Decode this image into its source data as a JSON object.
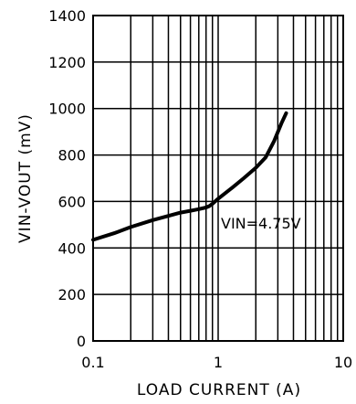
{
  "chart_data": {
    "type": "line",
    "xlabel": "LOAD CURRENT (A)",
    "ylabel": "VIN-VOUT (mV)",
    "x_scale": "log",
    "xlim": [
      0.1,
      10
    ],
    "ylim": [
      0,
      1400
    ],
    "x_ticks": [
      "0.1",
      "1",
      "10"
    ],
    "y_ticks": [
      "0",
      "200",
      "400",
      "600",
      "800",
      "1000",
      "1200",
      "1400"
    ],
    "grid": true,
    "annotation": "VIN=4.75V",
    "series": [
      {
        "x": [
          0.1,
          0.15,
          0.2,
          0.3,
          0.4,
          0.5,
          0.6,
          0.7,
          0.8,
          0.85,
          0.9,
          1.0,
          1.3,
          1.6,
          2.0,
          2.4,
          2.8,
          3.2,
          3.5
        ],
        "y": [
          435,
          465,
          490,
          520,
          538,
          552,
          560,
          567,
          574,
          580,
          590,
          612,
          660,
          700,
          745,
          790,
          860,
          935,
          980
        ]
      }
    ]
  }
}
